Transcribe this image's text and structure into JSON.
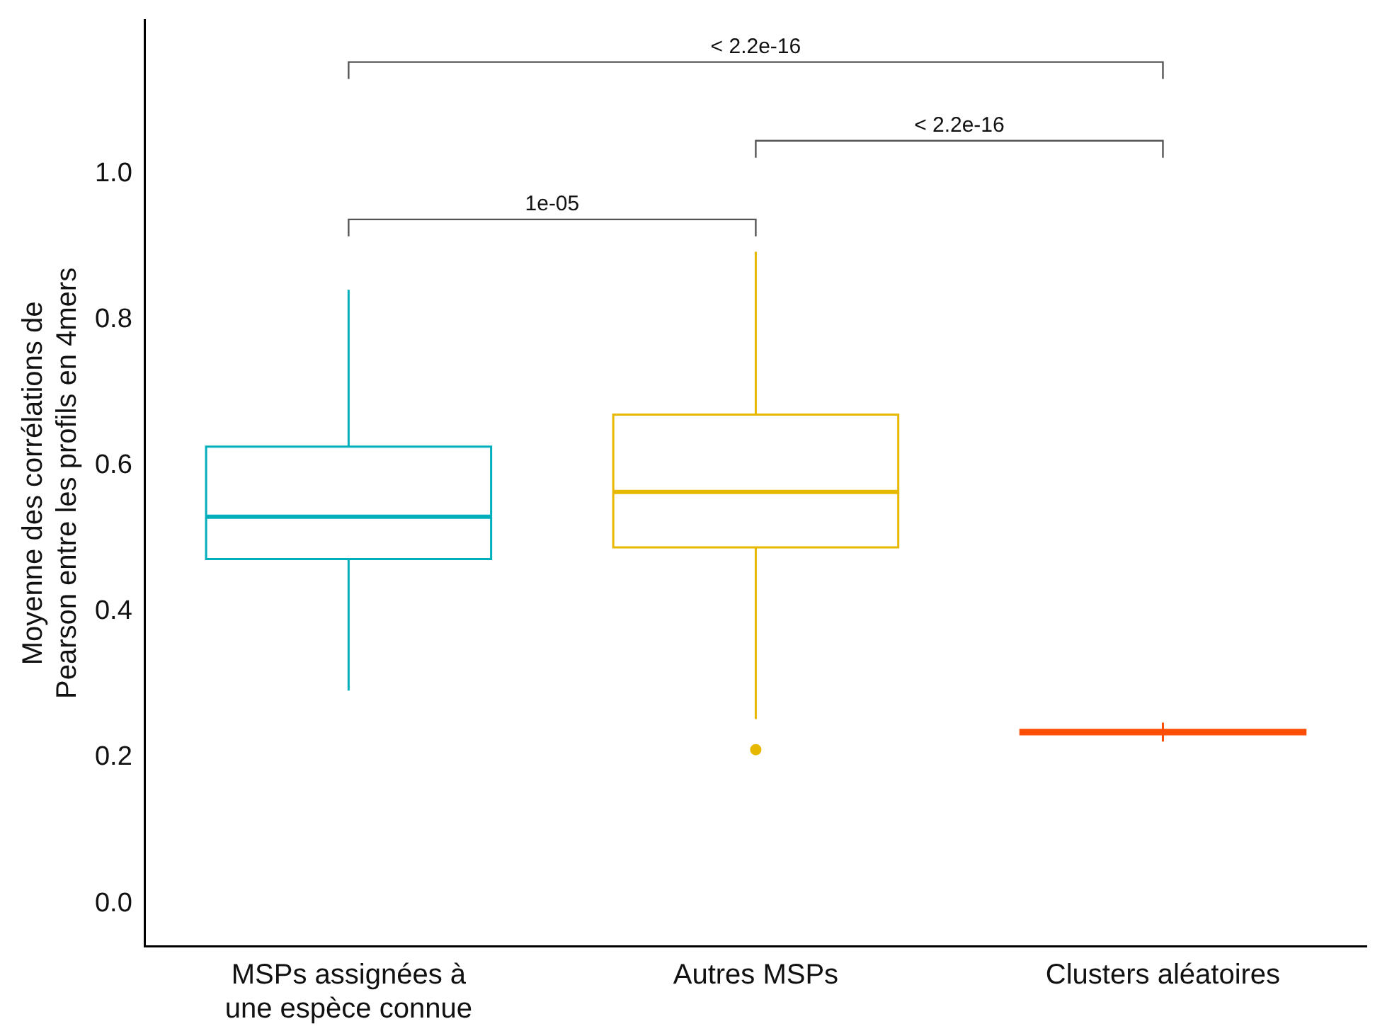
{
  "chart_data": {
    "type": "box",
    "ylabel": "Moyenne des corrélations de Pearson entre les profils en 4mers",
    "categories": [
      "MSPs assignées à une espèce connue",
      "Autres MSPs",
      "Clusters aléatoires"
    ],
    "colors": [
      "#00afbb",
      "#e7b800",
      "#fc4e07"
    ],
    "boxes": [
      {
        "low": 0.292,
        "q1": 0.472,
        "median": 0.53,
        "q3": 0.626,
        "high": 0.841
      },
      {
        "low": 0.253,
        "q1": 0.488,
        "median": 0.564,
        "q3": 0.67,
        "high": 0.893,
        "outliers": [
          0.211
        ]
      },
      {
        "low": 0.222,
        "q1": 0.232,
        "median": 0.235,
        "q3": 0.238,
        "high": 0.248
      }
    ],
    "ylim": [
      -0.058,
      1.21
    ],
    "yticks": [
      {
        "value": 0,
        "label": "0.0"
      },
      {
        "value": 0.2,
        "label": "0.2"
      },
      {
        "value": 0.4,
        "label": "0.4"
      },
      {
        "value": 0.6,
        "label": "0.6"
      },
      {
        "value": 0.8,
        "label": "0.8"
      },
      {
        "value": 1,
        "label": "1.0"
      }
    ],
    "grid": false,
    "legend": false,
    "annotations": [
      "1e-05",
      "< 2.2e-16",
      "< 2.2e-16"
    ]
  }
}
